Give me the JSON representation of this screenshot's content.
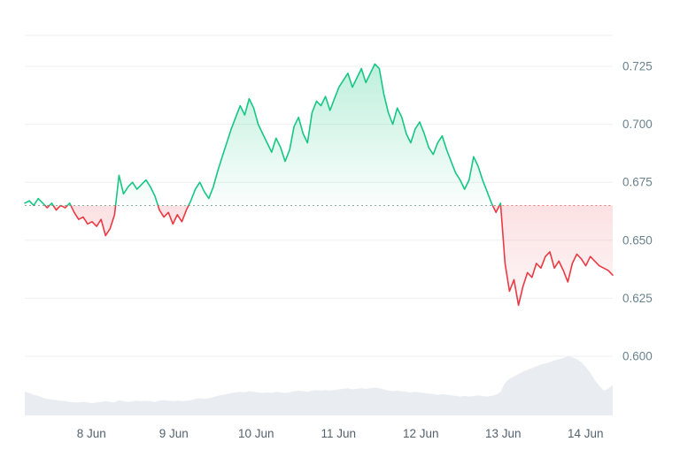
{
  "chart_data": {
    "type": "line",
    "title": "",
    "legend": "none",
    "grid": "horizontal",
    "baseline_value": 0.665,
    "x_range": [
      7.19,
      14.33
    ],
    "ylim": [
      0.588,
      0.74
    ],
    "x_ticks": [
      {
        "value": 8,
        "label": "8 Jun"
      },
      {
        "value": 9,
        "label": "9 Jun"
      },
      {
        "value": 10,
        "label": "10 Jun"
      },
      {
        "value": 11,
        "label": "11 Jun"
      },
      {
        "value": 12,
        "label": "12 Jun"
      },
      {
        "value": 13,
        "label": "13 Jun"
      },
      {
        "value": 14,
        "label": "14 Jun"
      }
    ],
    "y_ticks": [
      {
        "value": 0.725,
        "label": "0.725"
      },
      {
        "value": 0.7,
        "label": "0.700"
      },
      {
        "value": 0.675,
        "label": "0.675"
      },
      {
        "value": 0.65,
        "label": "0.650"
      },
      {
        "value": 0.625,
        "label": "0.625"
      },
      {
        "value": 0.6,
        "label": "0.600"
      }
    ],
    "series": [
      {
        "name": "price",
        "values": [
          0.666,
          0.667,
          0.665,
          0.668,
          0.666,
          0.664,
          0.666,
          0.663,
          0.665,
          0.664,
          0.666,
          0.662,
          0.659,
          0.66,
          0.657,
          0.658,
          0.656,
          0.659,
          0.652,
          0.655,
          0.661,
          0.678,
          0.67,
          0.673,
          0.675,
          0.672,
          0.674,
          0.676,
          0.673,
          0.669,
          0.663,
          0.66,
          0.662,
          0.657,
          0.661,
          0.658,
          0.663,
          0.667,
          0.672,
          0.675,
          0.671,
          0.668,
          0.673,
          0.68,
          0.686,
          0.692,
          0.698,
          0.703,
          0.708,
          0.704,
          0.711,
          0.707,
          0.7,
          0.696,
          0.692,
          0.688,
          0.694,
          0.69,
          0.684,
          0.689,
          0.699,
          0.703,
          0.696,
          0.692,
          0.705,
          0.71,
          0.708,
          0.712,
          0.706,
          0.711,
          0.716,
          0.719,
          0.722,
          0.716,
          0.72,
          0.724,
          0.718,
          0.722,
          0.726,
          0.724,
          0.713,
          0.705,
          0.7,
          0.707,
          0.703,
          0.696,
          0.692,
          0.698,
          0.701,
          0.696,
          0.69,
          0.687,
          0.692,
          0.695,
          0.689,
          0.684,
          0.679,
          0.676,
          0.672,
          0.676,
          0.686,
          0.682,
          0.676,
          0.671,
          0.666,
          0.662,
          0.666,
          0.64,
          0.628,
          0.633,
          0.622,
          0.63,
          0.636,
          0.634,
          0.64,
          0.638,
          0.643,
          0.645,
          0.638,
          0.641,
          0.637,
          0.632,
          0.64,
          0.644,
          0.642,
          0.639,
          0.643,
          0.641,
          0.639,
          0.638,
          0.637,
          0.635
        ]
      },
      {
        "name": "volume",
        "unit": "relative_0_to_1",
        "values": [
          0.4,
          0.38,
          0.35,
          0.33,
          0.3,
          0.28,
          0.27,
          0.26,
          0.25,
          0.24,
          0.23,
          0.22,
          0.22,
          0.23,
          0.22,
          0.21,
          0.22,
          0.23,
          0.24,
          0.23,
          0.22,
          0.26,
          0.24,
          0.23,
          0.24,
          0.25,
          0.24,
          0.25,
          0.24,
          0.23,
          0.25,
          0.26,
          0.25,
          0.24,
          0.25,
          0.24,
          0.25,
          0.26,
          0.28,
          0.29,
          0.28,
          0.29,
          0.31,
          0.33,
          0.35,
          0.36,
          0.38,
          0.39,
          0.4,
          0.39,
          0.41,
          0.4,
          0.39,
          0.38,
          0.39,
          0.38,
          0.4,
          0.39,
          0.38,
          0.39,
          0.41,
          0.42,
          0.41,
          0.4,
          0.42,
          0.43,
          0.42,
          0.43,
          0.42,
          0.43,
          0.44,
          0.45,
          0.46,
          0.44,
          0.45,
          0.46,
          0.45,
          0.46,
          0.47,
          0.46,
          0.44,
          0.42,
          0.41,
          0.42,
          0.41,
          0.4,
          0.39,
          0.4,
          0.39,
          0.38,
          0.37,
          0.36,
          0.35,
          0.36,
          0.35,
          0.34,
          0.33,
          0.32,
          0.33,
          0.32,
          0.33,
          0.34,
          0.33,
          0.32,
          0.33,
          0.35,
          0.4,
          0.55,
          0.62,
          0.66,
          0.7,
          0.74,
          0.77,
          0.8,
          0.83,
          0.86,
          0.88,
          0.9,
          0.93,
          0.95,
          0.97,
          1.0,
          0.98,
          0.95,
          0.9,
          0.82,
          0.72,
          0.6,
          0.5,
          0.42,
          0.45,
          0.52
        ]
      }
    ],
    "colors": {
      "up": "#16c784",
      "down": "#ea3943",
      "volume": "#e9edf1",
      "grid": "#edf0f2",
      "axis_y": "#6a838d",
      "axis_x": "#54626f",
      "baseline_up": "#7ba697",
      "baseline_down": "#ea3943",
      "background": "#ffffff"
    }
  }
}
